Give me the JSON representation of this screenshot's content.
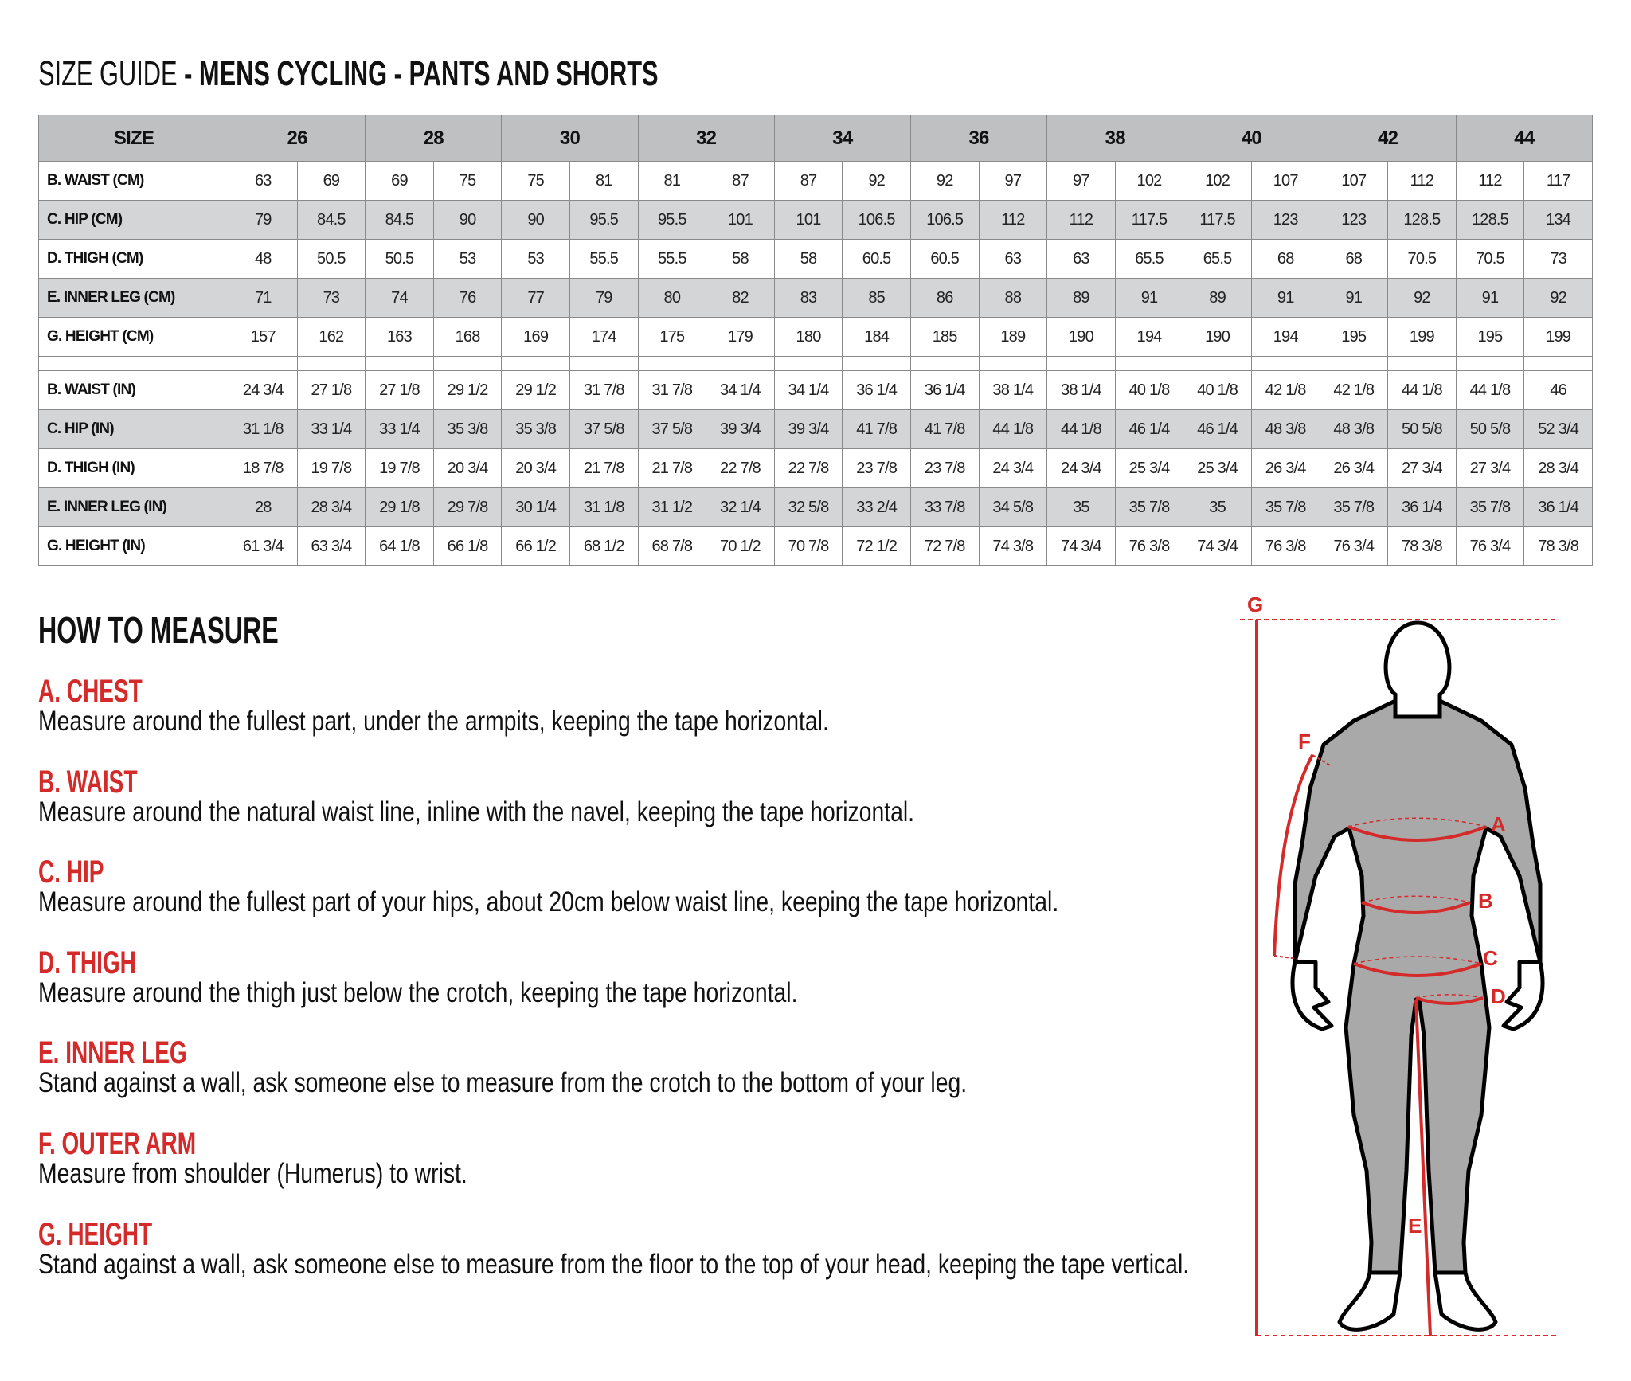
{
  "title": {
    "prefix": "SIZE GUIDE",
    "suffix": " - MENS CYCLING - PANTS AND SHORTS"
  },
  "table": {
    "size_label": "SIZE",
    "sizes": [
      "26",
      "28",
      "30",
      "32",
      "34",
      "36",
      "38",
      "40",
      "42",
      "44"
    ],
    "cm_rows": [
      {
        "label": "B. WAIST (CM)",
        "shade": false,
        "values": [
          "63",
          "69",
          "69",
          "75",
          "75",
          "81",
          "81",
          "87",
          "87",
          "92",
          "92",
          "97",
          "97",
          "102",
          "102",
          "107",
          "107",
          "112",
          "112",
          "117"
        ]
      },
      {
        "label": "C. HIP (CM)",
        "shade": true,
        "values": [
          "79",
          "84.5",
          "84.5",
          "90",
          "90",
          "95.5",
          "95.5",
          "101",
          "101",
          "106.5",
          "106.5",
          "112",
          "112",
          "117.5",
          "117.5",
          "123",
          "123",
          "128.5",
          "128.5",
          "134"
        ]
      },
      {
        "label": "D. THIGH (CM)",
        "shade": false,
        "values": [
          "48",
          "50.5",
          "50.5",
          "53",
          "53",
          "55.5",
          "55.5",
          "58",
          "58",
          "60.5",
          "60.5",
          "63",
          "63",
          "65.5",
          "65.5",
          "68",
          "68",
          "70.5",
          "70.5",
          "73"
        ]
      },
      {
        "label": "E. INNER LEG (CM)",
        "shade": true,
        "values": [
          "71",
          "73",
          "74",
          "76",
          "77",
          "79",
          "80",
          "82",
          "83",
          "85",
          "86",
          "88",
          "89",
          "91",
          "89",
          "91",
          "91",
          "92",
          "91",
          "92"
        ]
      },
      {
        "label": "G. HEIGHT (CM)",
        "shade": false,
        "values": [
          "157",
          "162",
          "163",
          "168",
          "169",
          "174",
          "175",
          "179",
          "180",
          "184",
          "185",
          "189",
          "190",
          "194",
          "190",
          "194",
          "195",
          "199",
          "195",
          "199"
        ]
      }
    ],
    "in_rows": [
      {
        "label": "B. WAIST (IN)",
        "shade": false,
        "values": [
          "24 3/4",
          "27 1/8",
          "27 1/8",
          "29 1/2",
          "29 1/2",
          "31 7/8",
          "31 7/8",
          "34 1/4",
          "34 1/4",
          "36 1/4",
          "36 1/4",
          "38 1/4",
          "38 1/4",
          "40 1/8",
          "40 1/8",
          "42 1/8",
          "42 1/8",
          "44 1/8",
          "44 1/8",
          "46"
        ]
      },
      {
        "label": "C. HIP (IN)",
        "shade": true,
        "values": [
          "31 1/8",
          "33 1/4",
          "33 1/4",
          "35 3/8",
          "35 3/8",
          "37 5/8",
          "37 5/8",
          "39 3/4",
          "39 3/4",
          "41 7/8",
          "41 7/8",
          "44 1/8",
          "44 1/8",
          "46 1/4",
          "46 1/4",
          "48 3/8",
          "48 3/8",
          "50 5/8",
          "50 5/8",
          "52 3/4"
        ]
      },
      {
        "label": "D. THIGH (IN)",
        "shade": false,
        "values": [
          "18 7/8",
          "19 7/8",
          "19 7/8",
          "20 3/4",
          "20 3/4",
          "21 7/8",
          "21 7/8",
          "22 7/8",
          "22 7/8",
          "23 7/8",
          "23 7/8",
          "24 3/4",
          "24 3/4",
          "25 3/4",
          "25 3/4",
          "26 3/4",
          "26 3/4",
          "27 3/4",
          "27 3/4",
          "28 3/4"
        ]
      },
      {
        "label": "E. INNER LEG (IN)",
        "shade": true,
        "values": [
          "28",
          "28 3/4",
          "29 1/8",
          "29 7/8",
          "30 1/4",
          "31 1/8",
          "31 1/2",
          "32 1/4",
          "32 5/8",
          "33 2/4",
          "33 7/8",
          "34 5/8",
          "35",
          "35 7/8",
          "35",
          "35 7/8",
          "35 7/8",
          "36 1/4",
          "35 7/8",
          "36 1/4"
        ]
      },
      {
        "label": "G. HEIGHT (IN)",
        "shade": false,
        "values": [
          "61 3/4",
          "63 3/4",
          "64 1/8",
          "66 1/8",
          "66 1/2",
          "68 1/2",
          "68 7/8",
          "70 1/2",
          "70 7/8",
          "72 1/2",
          "72 7/8",
          "74 3/8",
          "74 3/4",
          "76 3/8",
          "74 3/4",
          "76 3/8",
          "76 3/4",
          "78 3/8",
          "76 3/4",
          "78 3/8"
        ]
      }
    ]
  },
  "how_to_measure": {
    "title": "HOW TO MEASURE",
    "items": [
      {
        "label": "A. CHEST",
        "text": "Measure around the fullest part, under the armpits, keeping the tape horizontal."
      },
      {
        "label": "B. WAIST",
        "text": "Measure around the natural waist line, inline with the navel, keeping the tape horizontal."
      },
      {
        "label": "C. HIP",
        "text": "Measure around the fullest part of your hips, about 20cm below waist line, keeping the tape horizontal."
      },
      {
        "label": "D. THIGH",
        "text": "Measure around the thigh just below the crotch, keeping the tape horizontal."
      },
      {
        "label": "E. INNER LEG",
        "text": "Stand against a wall, ask someone else to measure from the crotch to the bottom of your leg."
      },
      {
        "label": "F. OUTER ARM",
        "text": "Measure from shoulder (Humerus) to wrist."
      },
      {
        "label": "G. HEIGHT",
        "text": "Stand against a wall, ask someone else to measure from the floor to the top of your head, keeping the tape vertical."
      }
    ]
  },
  "figure": {
    "markers": {
      "A": "A",
      "B": "B",
      "C": "C",
      "D": "D",
      "E": "E",
      "F": "F",
      "G": "G"
    },
    "accent_color": "#d42a2a",
    "body_color": "#a9a9a9"
  }
}
